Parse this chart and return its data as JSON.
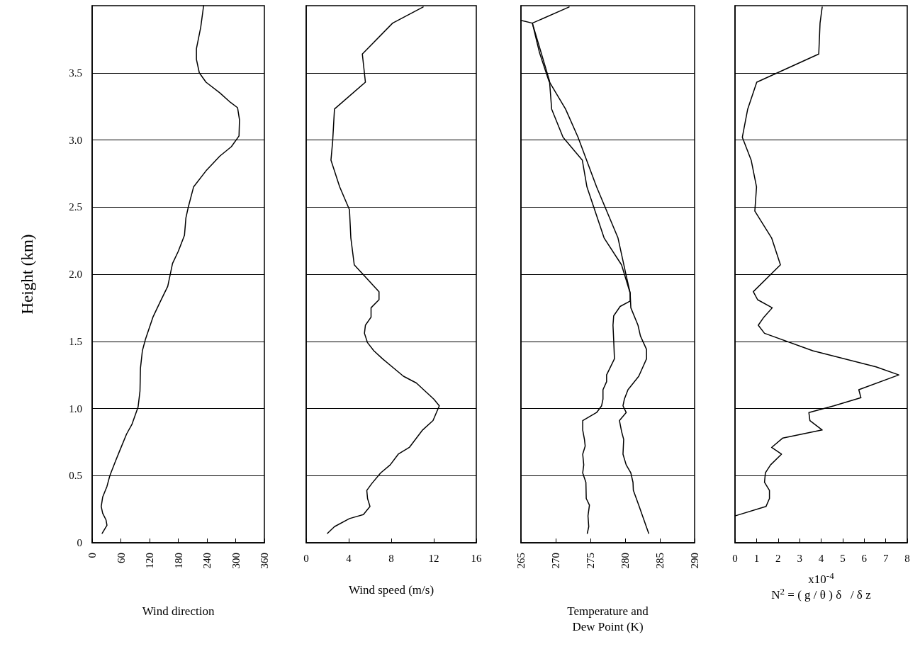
{
  "chart_data": [
    {
      "type": "line",
      "xlabel": "Wind direction",
      "ylabel": "Height (km)",
      "xlim": [
        0,
        360
      ],
      "xticks": [
        0,
        60,
        120,
        180,
        240,
        300,
        360
      ],
      "ylim": [
        0,
        4
      ],
      "yticks": [
        0,
        0.5,
        {
          "value": 1,
          "label": "1.0"
        },
        1.5,
        {
          "value": 2,
          "label": "2.0"
        },
        2.5,
        {
          "value": 3,
          "label": "3.0"
        },
        3.5
      ],
      "grid": "y",
      "marker": "none",
      "line_style": "solid",
      "series": [
        {
          "color": "#000000",
          "x": [
            21,
            31,
            29,
            22,
            19,
            22,
            31,
            37,
            49,
            57,
            72,
            83,
            96,
            100,
            101,
            105,
            111,
            127,
            143,
            158,
            168,
            180,
            193,
            196,
            201,
            212,
            238,
            267,
            291,
            307,
            308,
            304,
            289,
            267,
            238,
            224,
            218,
            218,
            227,
            233
          ],
          "values": [
            0.07,
            0.13,
            0.17,
            0.22,
            0.27,
            0.34,
            0.42,
            0.5,
            0.61,
            0.68,
            0.81,
            0.88,
            1.01,
            1.13,
            1.3,
            1.43,
            1.51,
            1.68,
            1.8,
            1.91,
            2.08,
            2.17,
            2.29,
            2.42,
            2.5,
            2.65,
            2.77,
            2.88,
            2.95,
            3.03,
            3.15,
            3.24,
            3.28,
            3.35,
            3.43,
            3.5,
            3.6,
            3.68,
            3.84,
            4.0
          ]
        }
      ]
    },
    {
      "type": "line",
      "xlabel": "Wind speed (m/s)",
      "xlim": [
        0,
        16
      ],
      "xticks": [
        0,
        4,
        8,
        12,
        16
      ],
      "ylim": [
        0,
        4
      ],
      "yticks": [
        0,
        0.5,
        1,
        1.5,
        2,
        2.5,
        3,
        3.5
      ],
      "grid": "y",
      "marker": "none",
      "line_style": "solid",
      "tick_labels": "x",
      "series": [
        {
          "color": "#000000",
          "x": [
            2.0,
            2.66,
            4.07,
            5.38,
            6.0,
            5.77,
            5.7,
            6.16,
            7.0,
            7.9,
            8.66,
            9.7,
            10.95,
            11.93,
            12.52,
            12.0,
            10.36,
            9.15,
            7.18,
            6.36,
            5.77,
            5.48,
            5.57,
            6.1,
            6.1,
            6.85,
            6.85,
            4.52,
            4.2,
            4.07,
            3.15,
            2.33,
            2.49,
            2.66,
            5.57,
            5.28,
            8.13,
            11.0
          ],
          "values": [
            0.07,
            0.12,
            0.18,
            0.21,
            0.27,
            0.33,
            0.39,
            0.44,
            0.52,
            0.58,
            0.66,
            0.71,
            0.84,
            0.91,
            1.02,
            1.07,
            1.19,
            1.24,
            1.37,
            1.43,
            1.49,
            1.56,
            1.62,
            1.68,
            1.75,
            1.81,
            1.87,
            2.07,
            2.27,
            2.48,
            2.65,
            2.85,
            2.99,
            3.23,
            3.43,
            3.64,
            3.87,
            3.99
          ]
        }
      ]
    },
    {
      "type": "line",
      "xlabel": "Temperature and\nDew Point (K)",
      "xlim": [
        265,
        290
      ],
      "xticks": [
        265,
        270,
        275,
        280,
        285,
        290
      ],
      "ylim": [
        0,
        4
      ],
      "yticks": [
        0,
        0.5,
        1,
        1.5,
        2,
        2.5,
        3,
        3.5
      ],
      "grid": "y",
      "marker": "none",
      "line_style": "solid",
      "tick_labels": "x",
      "series": [
        {
          "color": "#000000",
          "x": [
            283.39,
            282.57,
            281.96,
            281.18,
            281.13,
            280.82,
            280.15,
            279.69,
            279.79,
            279.48,
            279.18,
            280.15,
            279.69,
            279.89,
            280.41,
            281.96,
            283.08,
            283.08,
            282.2,
            281.85,
            280.82,
            280.72,
            280.15,
            278.97,
            275.89,
            273.22,
            271.42,
            269.01,
            267.67,
            266.64,
            271.93
          ],
          "values": [
            0.07,
            0.19,
            0.28,
            0.39,
            0.45,
            0.52,
            0.58,
            0.66,
            0.77,
            0.83,
            0.91,
            0.97,
            1.02,
            1.07,
            1.14,
            1.24,
            1.37,
            1.44,
            1.54,
            1.62,
            1.75,
            1.86,
            1.99,
            2.27,
            2.65,
            3.02,
            3.23,
            3.44,
            3.65,
            3.87,
            3.99
          ]
        },
        {
          "color": "#000000",
          "x": [
            274.55,
            274.76,
            274.65,
            274.86,
            274.4,
            274.35,
            273.89,
            274.04,
            273.89,
            274.25,
            274.14,
            273.89,
            273.89,
            275.89,
            276.61,
            276.81,
            276.81,
            277.33,
            277.33,
            278.46,
            278.35,
            278.25,
            278.35,
            279.28,
            280.72,
            280.72,
            279.48,
            276.97,
            274.5,
            273.83,
            271.06,
            269.42,
            269.11,
            266.64,
            265.0
          ],
          "values": [
            0.07,
            0.12,
            0.2,
            0.28,
            0.33,
            0.45,
            0.52,
            0.58,
            0.66,
            0.72,
            0.77,
            0.84,
            0.91,
            0.97,
            1.02,
            1.07,
            1.14,
            1.2,
            1.25,
            1.37,
            1.51,
            1.62,
            1.69,
            1.76,
            1.8,
            1.86,
            2.07,
            2.27,
            2.65,
            2.85,
            3.02,
            3.23,
            3.44,
            3.87,
            3.89
          ]
        }
      ]
    },
    {
      "type": "line",
      "xlabel": "x10$^{-4}$\nN$^{2}$ = ( g / θ ) δ   / δ z",
      "xlim": [
        0,
        8
      ],
      "xticks": [
        0,
        1,
        2,
        3,
        4,
        5,
        6,
        7,
        8
      ],
      "ylim": [
        0,
        4
      ],
      "yticks": [
        0,
        0.5,
        1,
        1.5,
        2,
        2.5,
        3,
        3.5
      ],
      "grid": "y",
      "marker": "none",
      "line_style": "solid",
      "tick_labels": "x",
      "series": [
        {
          "color": "#000000",
          "x": [
            0,
            1.44,
            1.6,
            1.6,
            1.37,
            1.41,
            1.65,
            2.16,
            1.7,
            2.22,
            4.05,
            3.48,
            3.43,
            4.59,
            5.85,
            5.75,
            7.61,
            6.55,
            3.61,
            1.37,
            1.08,
            1.34,
            1.73,
            1.05,
            0.85,
            2.11,
            1.7,
            0.92,
            1.0,
            0.75,
            0.34,
            0.59,
            1.01,
            3.89,
            3.95,
            4.05
          ],
          "values": [
            0.2,
            0.27,
            0.33,
            0.39,
            0.45,
            0.52,
            0.58,
            0.66,
            0.71,
            0.78,
            0.84,
            0.91,
            0.97,
            1.02,
            1.08,
            1.14,
            1.25,
            1.31,
            1.43,
            1.56,
            1.62,
            1.68,
            1.75,
            1.81,
            1.87,
            2.07,
            2.27,
            2.47,
            2.65,
            2.85,
            3.02,
            3.23,
            3.43,
            3.64,
            3.87,
            3.99
          ]
        }
      ]
    }
  ]
}
